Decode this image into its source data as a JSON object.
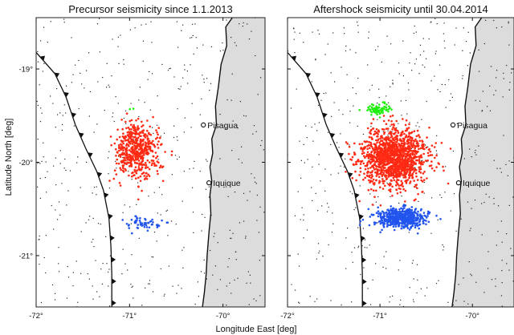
{
  "colors": {
    "land": "#dcdcdc",
    "sea": "#ffffff",
    "frame": "#222222",
    "background_events": "#222222",
    "cluster_north": "#22ee11",
    "cluster_main": "#ff2a14",
    "cluster_south": "#2255ee",
    "town_marker": "#ffffff"
  },
  "axes": {
    "xlabel": "Longitude East [deg]",
    "ylabel": "Latitude North [deg]",
    "lon_range": [
      -72,
      -69.55
    ],
    "lat_range": [
      -21.55,
      -18.45
    ],
    "lon_ticks": [
      {
        "value": -72,
        "label": "-72°"
      },
      {
        "value": -71,
        "label": "-71°"
      },
      {
        "value": -70,
        "label": "-70°"
      }
    ],
    "lat_ticks": [
      {
        "value": -19,
        "label": "-19°"
      },
      {
        "value": -20,
        "label": "-20°"
      },
      {
        "value": -21,
        "label": "-21°"
      }
    ]
  },
  "map_features": {
    "trench_name_icon": "trench-sawtooth-icon",
    "coastline_icon": "coastline-line",
    "trench": [
      [
        -72.02,
        -18.8
      ],
      [
        -71.8,
        -19.05
      ],
      [
        -71.68,
        -19.3
      ],
      [
        -71.58,
        -19.6
      ],
      [
        -71.47,
        -19.85
      ],
      [
        -71.35,
        -20.1
      ],
      [
        -71.28,
        -20.3
      ],
      [
        -71.22,
        -20.6
      ],
      [
        -71.2,
        -20.9
      ],
      [
        -71.19,
        -21.2
      ],
      [
        -71.19,
        -21.55
      ]
    ],
    "coastline": [
      [
        -69.9,
        -18.45
      ],
      [
        -69.97,
        -18.55
      ],
      [
        -69.96,
        -18.75
      ],
      [
        -70.02,
        -18.95
      ],
      [
        -70.05,
        -19.2
      ],
      [
        -70.08,
        -19.4
      ],
      [
        -70.07,
        -19.6
      ],
      [
        -70.12,
        -19.75
      ],
      [
        -70.11,
        -19.9
      ],
      [
        -70.14,
        -20.05
      ],
      [
        -70.12,
        -20.2
      ],
      [
        -70.14,
        -20.35
      ],
      [
        -70.13,
        -20.55
      ],
      [
        -70.15,
        -20.75
      ],
      [
        -70.17,
        -21.0
      ],
      [
        -70.18,
        -21.2
      ],
      [
        -70.2,
        -21.4
      ],
      [
        -70.22,
        -21.55
      ]
    ],
    "towns": [
      {
        "name": "Pisagua",
        "lon": -70.21,
        "lat": -19.6
      },
      {
        "name": "Iquique",
        "lon": -70.15,
        "lat": -20.22
      }
    ]
  },
  "panels": [
    {
      "title": "Precursor seismicity since 1.1.2013",
      "clusters": [
        {
          "color_key": "cluster_main",
          "lon_center": -70.93,
          "lat_center": -19.87,
          "lon_spread": 0.16,
          "lat_spread": 0.2,
          "count": 520
        },
        {
          "color_key": "cluster_south",
          "lon_center": -70.85,
          "lat_center": -20.65,
          "lon_spread": 0.16,
          "lat_spread": 0.06,
          "count": 55
        },
        {
          "color_key": "cluster_north",
          "lon_center": -70.98,
          "lat_center": -19.43,
          "lon_spread": 0.02,
          "lat_spread": 0.01,
          "count": 2
        }
      ]
    },
    {
      "title": "Aftershock seismicity until 30.04.2014",
      "clusters": [
        {
          "color_key": "cluster_main",
          "lon_center": -70.85,
          "lat_center": -19.95,
          "lon_spread": 0.23,
          "lat_spread": 0.2,
          "count": 1400
        },
        {
          "color_key": "cluster_south",
          "lon_center": -70.78,
          "lat_center": -20.6,
          "lon_spread": 0.18,
          "lat_spread": 0.07,
          "count": 520
        },
        {
          "color_key": "cluster_north",
          "lon_center": -71.03,
          "lat_center": -19.43,
          "lon_spread": 0.08,
          "lat_spread": 0.04,
          "count": 85
        }
      ]
    }
  ],
  "background_event_count": 420
}
